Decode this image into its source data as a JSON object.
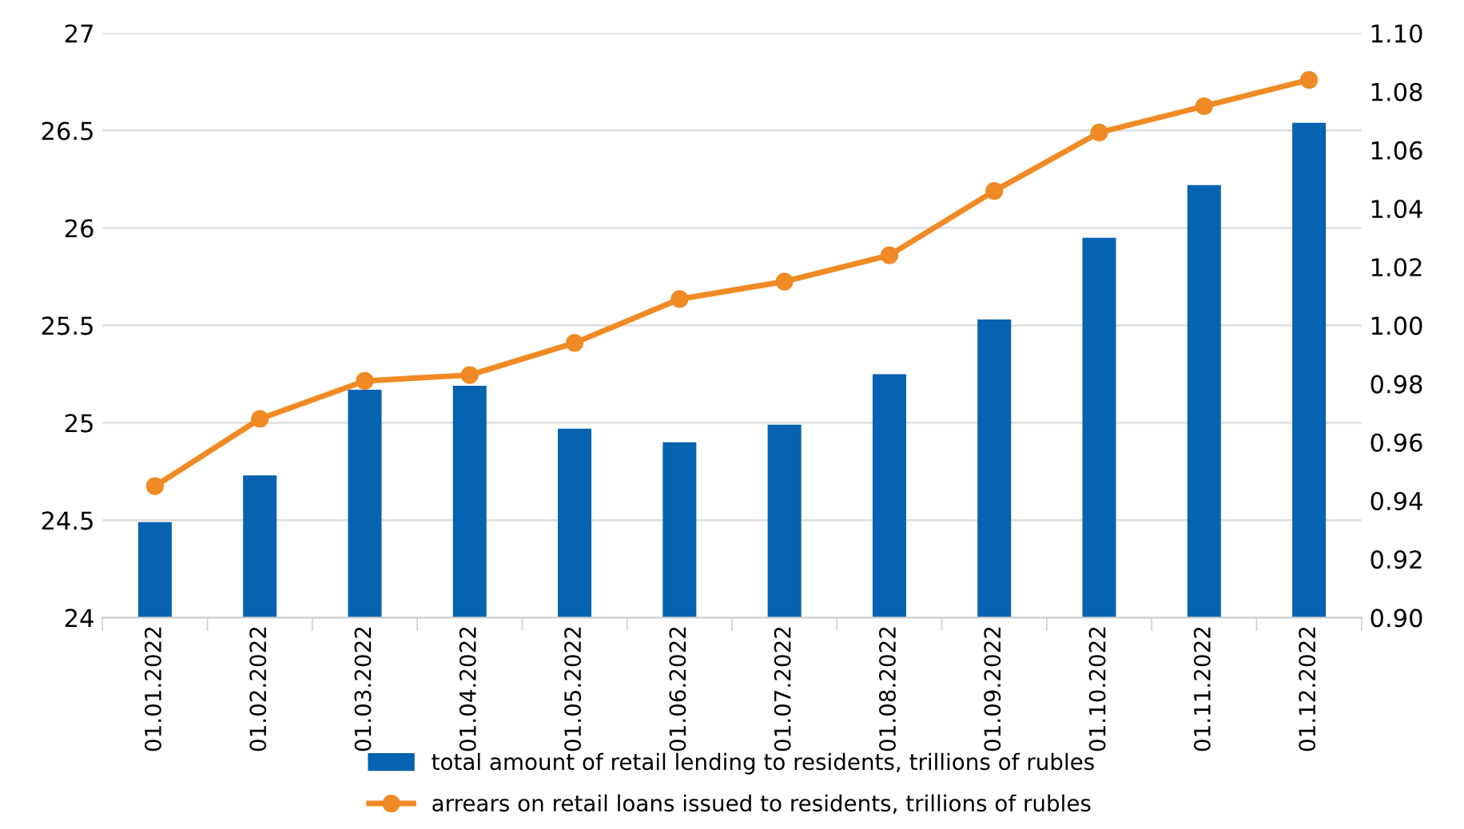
{
  "chart_data": {
    "type": "bar",
    "categories": [
      "01.01.2022",
      "01.02.2022",
      "01.03.2022",
      "01.04.2022",
      "01.05.2022",
      "01.06.2022",
      "01.07.2022",
      "01.08.2022",
      "01.09.2022",
      "01.10.2022",
      "01.11.2022",
      "01.12.2022"
    ],
    "series": [
      {
        "name": "total amount of retail lending to residents, trillions of rubles",
        "color": "#0563b0",
        "values": [
          24.49,
          24.73,
          25.17,
          25.19,
          24.97,
          24.9,
          24.99,
          25.25,
          25.53,
          25.95,
          26.22,
          26.54
        ]
      },
      {
        "name": "arrears on retail loans issued to residents, trillions of rubles",
        "type": "line",
        "axis": "y2",
        "color": "#f08a24",
        "marker": "circle",
        "values": [
          0.945,
          0.968,
          0.981,
          0.983,
          0.994,
          1.009,
          1.015,
          1.024,
          1.046,
          1.066,
          1.075,
          1.084
        ]
      }
    ],
    "ylim": [
      24,
      27
    ],
    "yticks": [
      24,
      24.5,
      25,
      25.5,
      26,
      26.5,
      27
    ],
    "y2lim": [
      0.9,
      1.1
    ],
    "y2ticks": [
      {
        "value": 0.9,
        "label": "0.90"
      },
      {
        "value": 0.92,
        "label": "0.92"
      },
      {
        "value": 0.94,
        "label": "0.94"
      },
      {
        "value": 0.96,
        "label": "0.96"
      },
      {
        "value": 0.98,
        "label": "0.98"
      },
      {
        "value": 1.0,
        "label": "1.00"
      },
      {
        "value": 1.02,
        "label": "1.02"
      },
      {
        "value": 1.04,
        "label": "1.04"
      },
      {
        "value": 1.06,
        "label": "1.06"
      },
      {
        "value": 1.08,
        "label": "1.08"
      },
      {
        "value": 1.1,
        "label": "1.10"
      }
    ],
    "grid": "y",
    "legend": "bottom"
  }
}
